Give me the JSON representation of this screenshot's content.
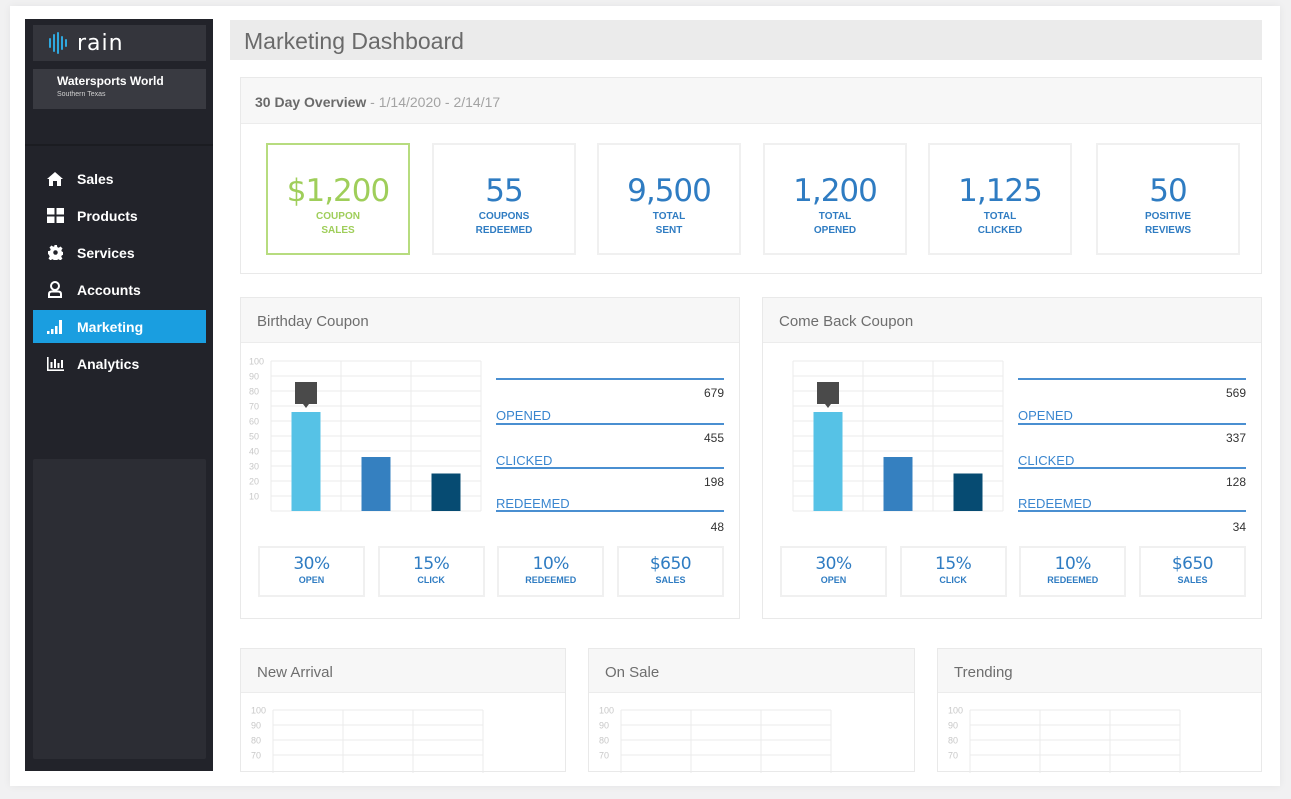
{
  "brand": {
    "logo_text": "rain",
    "org_name": "Watersports World",
    "org_region": "Southern Texas"
  },
  "sidebar": {
    "items": [
      {
        "label": "Sales",
        "icon": "home-icon",
        "active": false
      },
      {
        "label": "Products",
        "icon": "grid-icon",
        "active": false
      },
      {
        "label": "Services",
        "icon": "gear-icon",
        "active": false
      },
      {
        "label": "Accounts",
        "icon": "user-icon",
        "active": false
      },
      {
        "label": "Marketing",
        "icon": "signal-bars-icon",
        "active": true
      },
      {
        "label": "Analytics",
        "icon": "bar-chart-icon",
        "active": false
      }
    ]
  },
  "colors": {
    "accent": "#1a9ee0",
    "primary_blue": "#2f7cc2",
    "highlight_green": "#9fce5a",
    "bar_light": "#56c2e6",
    "bar_mid": "#3580c0",
    "bar_dark": "#064b72",
    "marker": "#4a4a4a"
  },
  "header": {
    "title": "Marketing Dashboard"
  },
  "overview": {
    "title": "30 Day Overview",
    "range": " - 1/14/2020 - 2/14/17",
    "kpis": [
      {
        "value": "$1,200",
        "label_1": "COUPON",
        "label_2": "SALES",
        "highlight": true
      },
      {
        "value": "55",
        "label_1": "COUPONS",
        "label_2": "REDEEMED"
      },
      {
        "value": "9,500",
        "label_1": "TOTAL",
        "label_2": "SENT"
      },
      {
        "value": "1,200",
        "label_1": "TOTAL",
        "label_2": "OPENED"
      },
      {
        "value": "1,125",
        "label_1": "TOTAL",
        "label_2": "CLICKED"
      },
      {
        "value": "50",
        "label_1": "POSITIVE",
        "label_2": "REVIEWS"
      }
    ]
  },
  "coupons": [
    {
      "title": "Birthday Coupon",
      "stats": [
        {
          "label": "OPENED",
          "value": "679"
        },
        {
          "label": "CLICKED",
          "value": "455"
        },
        {
          "label": "REDEEMED",
          "value": "198"
        }
      ],
      "final_value": "48",
      "metrics": [
        {
          "value": "30%",
          "label": "OPEN"
        },
        {
          "value": "15%",
          "label": "CLICK"
        },
        {
          "value": "10%",
          "label": "REDEEMED"
        },
        {
          "value": "$650",
          "label": "SALES"
        }
      ]
    },
    {
      "title": "Come Back Coupon",
      "stats": [
        {
          "label": "OPENED",
          "value": "569"
        },
        {
          "label": "CLICKED",
          "value": "337"
        },
        {
          "label": "REDEEMED",
          "value": "128"
        }
      ],
      "final_value": "34",
      "metrics": [
        {
          "value": "30%",
          "label": "OPEN"
        },
        {
          "value": "15%",
          "label": "CLICK"
        },
        {
          "value": "10%",
          "label": "REDEEMED"
        },
        {
          "value": "$650",
          "label": "SALES"
        }
      ]
    }
  ],
  "bottom_cards": [
    {
      "title": "New Arrival"
    },
    {
      "title": "On Sale"
    },
    {
      "title": "Trending"
    }
  ],
  "chart_data": [
    {
      "type": "bar",
      "title": "Birthday Coupon",
      "categories": [
        "Opened",
        "Clicked",
        "Redeemed"
      ],
      "values": [
        66,
        36,
        25
      ],
      "marker_on": 0,
      "yticks": [
        10,
        20,
        30,
        40,
        50,
        60,
        70,
        80,
        90,
        100
      ],
      "show_ytick_labels": true,
      "ylim": [
        0,
        100
      ],
      "grid": true
    },
    {
      "type": "bar",
      "title": "Come Back Coupon",
      "categories": [
        "Opened",
        "Clicked",
        "Redeemed"
      ],
      "values": [
        66,
        36,
        25
      ],
      "marker_on": 0,
      "yticks": [
        10,
        20,
        30,
        40,
        50,
        60,
        70,
        80,
        90,
        100
      ],
      "show_ytick_labels": false,
      "ylim": [
        0,
        100
      ],
      "grid": true
    },
    {
      "type": "bar",
      "title": "New Arrival",
      "categories": [
        "",
        "",
        ""
      ],
      "values": [],
      "yticks": [
        70,
        80,
        90,
        100
      ],
      "show_ytick_labels": true,
      "ylim": [
        0,
        100
      ],
      "grid": true
    },
    {
      "type": "bar",
      "title": "On Sale",
      "categories": [
        "",
        "",
        ""
      ],
      "values": [],
      "yticks": [
        70,
        80,
        90,
        100
      ],
      "show_ytick_labels": true,
      "ylim": [
        0,
        100
      ],
      "grid": true
    },
    {
      "type": "bar",
      "title": "Trending",
      "categories": [
        "",
        "",
        ""
      ],
      "values": [],
      "yticks": [
        70,
        80,
        90,
        100
      ],
      "show_ytick_labels": true,
      "ylim": [
        0,
        100
      ],
      "grid": true
    }
  ]
}
